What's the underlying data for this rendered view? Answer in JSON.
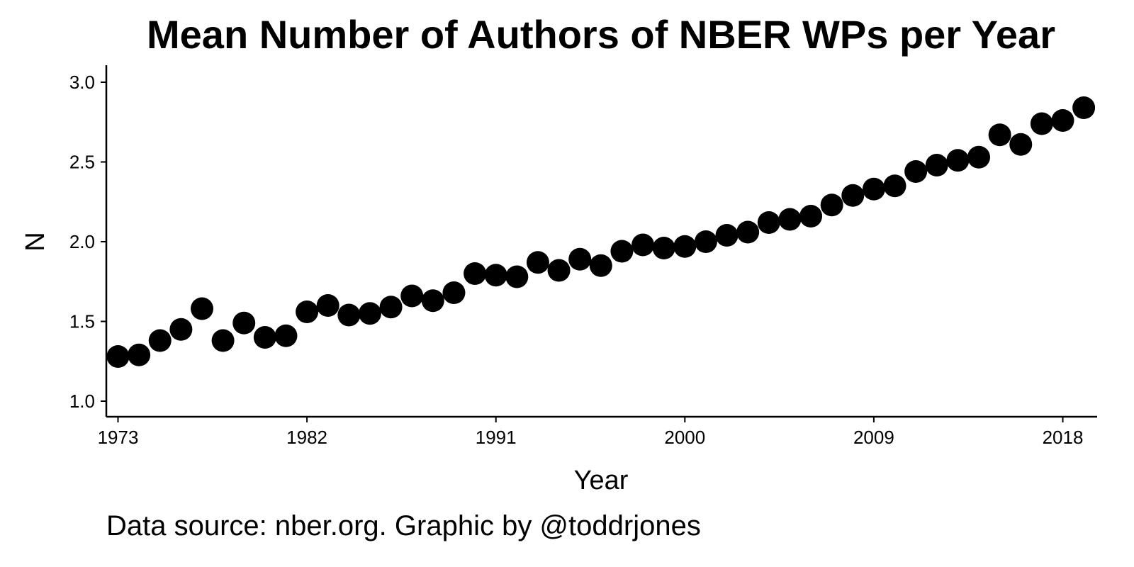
{
  "chart_data": {
    "type": "scatter",
    "title": "Mean Number of Authors of NBER WPs per Year",
    "xlabel": "Year",
    "ylabel": "N",
    "caption": "Data source: nber.org. Graphic by @toddrjones",
    "xlim": [
      1972.4,
      2019.5
    ],
    "ylim": [
      0.9,
      3.1
    ],
    "x_ticks": [
      1973,
      1982,
      1991,
      2000,
      2009,
      2018
    ],
    "y_ticks": [
      1.0,
      1.5,
      2.0,
      2.5,
      3.0
    ],
    "y_tick_labels": [
      "1.0",
      "1.5",
      "2.0",
      "2.5",
      "3.0"
    ],
    "grid": false,
    "legend": "none",
    "point_color": "#000000",
    "series": [
      {
        "x": [
          1973,
          1974,
          1975,
          1976,
          1977,
          1978,
          1979,
          1980,
          1981,
          1982,
          1983,
          1984,
          1985,
          1986,
          1987,
          1988,
          1989,
          1990,
          1991,
          1992,
          1993,
          1994,
          1995,
          1996,
          1997,
          1998,
          1999,
          2000,
          2001,
          2002,
          2003,
          2004,
          2005,
          2006,
          2007,
          2008,
          2009,
          2010,
          2011,
          2012,
          2013,
          2014,
          2015,
          2016,
          2017,
          2018,
          2019
        ],
        "y": [
          1.28,
          1.29,
          1.38,
          1.45,
          1.58,
          1.38,
          1.49,
          1.4,
          1.41,
          1.56,
          1.6,
          1.54,
          1.55,
          1.59,
          1.66,
          1.63,
          1.68,
          1.8,
          1.79,
          1.78,
          1.87,
          1.82,
          1.89,
          1.85,
          1.94,
          1.98,
          1.96,
          1.97,
          2.0,
          2.04,
          2.06,
          2.12,
          2.14,
          2.16,
          2.23,
          2.29,
          2.33,
          2.35,
          2.44,
          2.48,
          2.51,
          2.53,
          2.67,
          2.61,
          2.74,
          2.76,
          2.84
        ]
      }
    ]
  }
}
